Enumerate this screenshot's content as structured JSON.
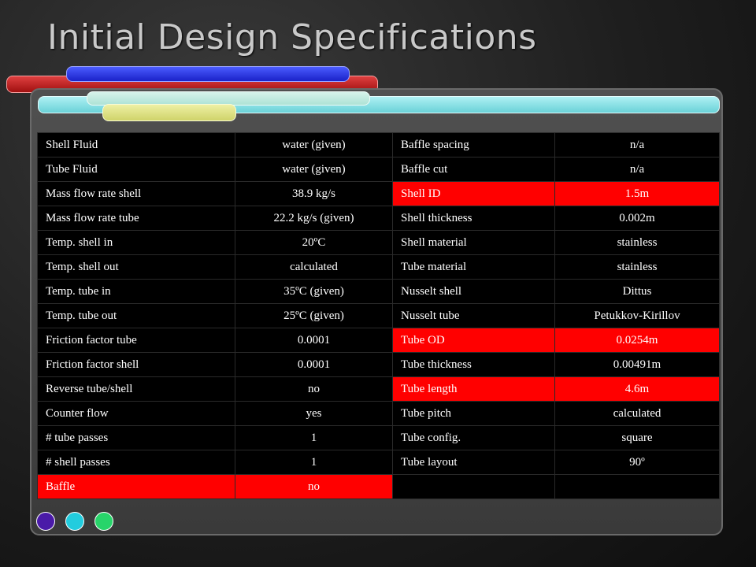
{
  "title": "Initial Design Specifications",
  "colors": {
    "highlight": "#ff0000",
    "cell_background": "#000000",
    "text": "#ffffff",
    "pill_blue": "#2a36e0",
    "pill_red": "#c82020",
    "pill_cyan": "#8ee2e8",
    "pill_mint": "#c4ecdf",
    "pill_yellow": "#dfe28a",
    "dot_purple": "#4a1aa8",
    "dot_cyan": "#22ccde",
    "dot_green": "#28d46a"
  },
  "table": {
    "rows": [
      {
        "cells": [
          "Shell Fluid",
          "water (given)",
          "Baffle spacing",
          "n/a"
        ],
        "highlight": [
          false,
          false,
          false,
          false
        ]
      },
      {
        "cells": [
          "Tube Fluid",
          "water (given)",
          "Baffle cut",
          "n/a"
        ],
        "highlight": [
          false,
          false,
          false,
          false
        ]
      },
      {
        "cells": [
          "Mass flow rate shell",
          "38.9 kg/s",
          "Shell ID",
          "1.5m"
        ],
        "highlight": [
          false,
          false,
          true,
          true
        ]
      },
      {
        "cells": [
          "Mass flow rate tube",
          "22.2 kg/s (given)",
          "Shell thickness",
          "0.002m"
        ],
        "highlight": [
          false,
          false,
          false,
          false
        ]
      },
      {
        "cells": [
          "Temp. shell in",
          "20ºC",
          "Shell material",
          "stainless"
        ],
        "highlight": [
          false,
          false,
          false,
          false
        ]
      },
      {
        "cells": [
          "Temp. shell out",
          "calculated",
          "Tube material",
          "stainless"
        ],
        "highlight": [
          false,
          false,
          false,
          false
        ]
      },
      {
        "cells": [
          "Temp. tube in",
          "35ºC (given)",
          "Nusselt shell",
          "Dittus"
        ],
        "highlight": [
          false,
          false,
          false,
          false
        ]
      },
      {
        "cells": [
          "Temp. tube out",
          "25ºC (given)",
          "Nusselt tube",
          "Petukkov-Kirillov"
        ],
        "highlight": [
          false,
          false,
          false,
          false
        ]
      },
      {
        "cells": [
          "Friction factor tube",
          "0.0001",
          "Tube OD",
          "0.0254m"
        ],
        "highlight": [
          false,
          false,
          true,
          true
        ]
      },
      {
        "cells": [
          "Friction factor shell",
          "0.0001",
          "Tube thickness",
          "0.00491m"
        ],
        "highlight": [
          false,
          false,
          false,
          false
        ]
      },
      {
        "cells": [
          "Reverse tube/shell",
          "no",
          "Tube length",
          "4.6m"
        ],
        "highlight": [
          false,
          false,
          true,
          true
        ]
      },
      {
        "cells": [
          "Counter flow",
          "yes",
          "Tube pitch",
          "calculated"
        ],
        "highlight": [
          false,
          false,
          false,
          false
        ]
      },
      {
        "cells": [
          "# tube passes",
          "1",
          "Tube config.",
          "square"
        ],
        "highlight": [
          false,
          false,
          false,
          false
        ]
      },
      {
        "cells": [
          "# shell passes",
          "1",
          "Tube layout",
          "90º"
        ],
        "highlight": [
          false,
          false,
          false,
          false
        ]
      },
      {
        "cells": [
          "Baffle",
          "no",
          "",
          ""
        ],
        "highlight": [
          true,
          true,
          false,
          false
        ]
      }
    ]
  }
}
